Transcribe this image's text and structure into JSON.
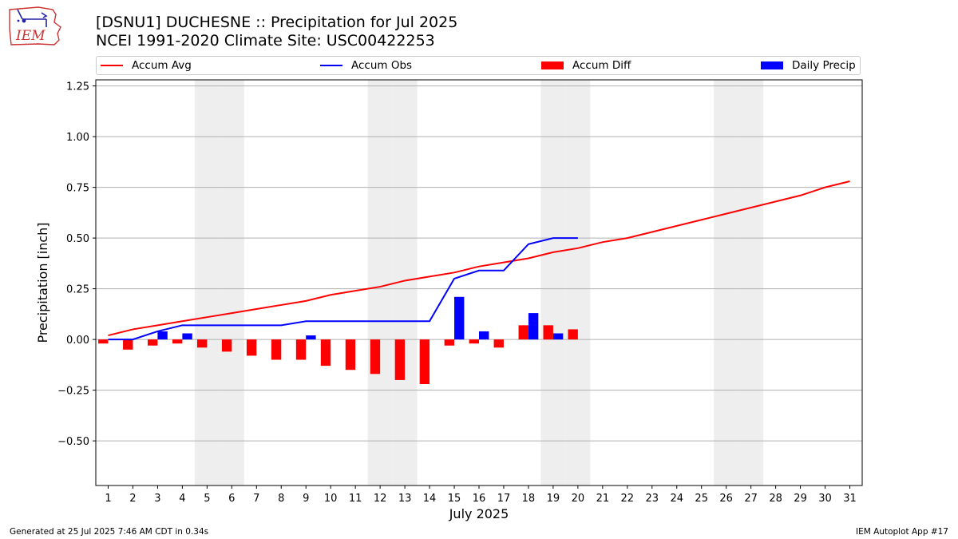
{
  "header": {
    "title_line1": "[DSNU1] DUCHESNE :: Precipitation for Jul 2025",
    "title_line2": "NCEI 1991-2020 Climate Site: USC00422253",
    "logo_text": "IEM"
  },
  "footer": {
    "generated": "Generated at 25 Jul 2025 7:46 AM CDT in 0.34s",
    "app": "IEM Autoplot App #17"
  },
  "colors": {
    "avg": "#ff0000",
    "obs": "#0000ff",
    "diff": "#ff0000",
    "precip": "#0000ff",
    "weekend": "#eeeeee",
    "grid": "#b0b0b0"
  },
  "chart_data": {
    "type": "bar",
    "title": "[DSNU1] DUCHESNE :: Precipitation for Jul 2025",
    "subtitle": "NCEI 1991-2020 Climate Site: USC00422253",
    "xlabel": "July 2025",
    "ylabel": "Precipitation [inch]",
    "ylim": [
      -0.72,
      1.28
    ],
    "xlim": [
      0.5,
      31.5
    ],
    "yticks": [
      -0.5,
      -0.25,
      0.0,
      0.25,
      0.5,
      0.75,
      1.0,
      1.25
    ],
    "ytick_labels": [
      "−0.50",
      "−0.25",
      "0.00",
      "0.25",
      "0.50",
      "0.75",
      "1.00",
      "1.25"
    ],
    "categories": [
      "1",
      "2",
      "3",
      "4",
      "5",
      "6",
      "7",
      "8",
      "9",
      "10",
      "11",
      "12",
      "13",
      "14",
      "15",
      "16",
      "17",
      "18",
      "19",
      "20",
      "21",
      "22",
      "23",
      "24",
      "25",
      "26",
      "27",
      "28",
      "29",
      "30",
      "31"
    ],
    "grid": "horizontal",
    "legend_position": "top",
    "weekend_days": [
      5,
      6,
      12,
      13,
      19,
      20,
      26,
      27
    ],
    "series": [
      {
        "name": "Accum Avg",
        "kind": "line",
        "color": "#ff0000",
        "x": [
          1,
          2,
          3,
          4,
          5,
          6,
          7,
          8,
          9,
          10,
          11,
          12,
          13,
          14,
          15,
          16,
          17,
          18,
          19,
          20,
          21,
          22,
          23,
          24,
          25,
          26,
          27,
          28,
          29,
          30,
          31
        ],
        "values": [
          0.02,
          0.05,
          0.07,
          0.09,
          0.11,
          0.13,
          0.15,
          0.17,
          0.19,
          0.22,
          0.24,
          0.26,
          0.29,
          0.31,
          0.33,
          0.36,
          0.38,
          0.4,
          0.43,
          0.45,
          0.48,
          0.5,
          0.53,
          0.56,
          0.59,
          0.62,
          0.65,
          0.68,
          0.71,
          0.75,
          0.78
        ]
      },
      {
        "name": "Accum Obs",
        "kind": "line",
        "color": "#0000ff",
        "x": [
          1,
          2,
          3,
          4,
          5,
          6,
          7,
          8,
          9,
          10,
          11,
          12,
          13,
          14,
          15,
          16,
          17,
          18,
          19,
          20
        ],
        "values": [
          0.0,
          0.0,
          0.04,
          0.07,
          0.07,
          0.07,
          0.07,
          0.07,
          0.09,
          0.09,
          0.09,
          0.09,
          0.09,
          0.09,
          0.3,
          0.34,
          0.34,
          0.47,
          0.5,
          0.5
        ]
      },
      {
        "name": "Accum Diff",
        "kind": "bar",
        "color": "#ff0000",
        "x": [
          1,
          2,
          3,
          4,
          5,
          6,
          7,
          8,
          9,
          10,
          11,
          12,
          13,
          14,
          15,
          16,
          17,
          18,
          19,
          20
        ],
        "values": [
          -0.02,
          -0.05,
          -0.03,
          -0.02,
          -0.04,
          -0.06,
          -0.08,
          -0.1,
          -0.1,
          -0.13,
          -0.15,
          -0.17,
          -0.2,
          -0.22,
          -0.03,
          -0.02,
          -0.04,
          0.07,
          0.07,
          0.05
        ]
      },
      {
        "name": "Daily Precip",
        "kind": "bar",
        "color": "#0000ff",
        "x": [
          1,
          2,
          3,
          4,
          5,
          6,
          7,
          8,
          9,
          10,
          11,
          12,
          13,
          14,
          15,
          16,
          17,
          18,
          19,
          20
        ],
        "values": [
          0,
          0,
          0.04,
          0.03,
          0,
          0,
          0,
          0,
          0.02,
          0,
          0,
          0,
          0,
          0,
          0.21,
          0.04,
          0,
          0.13,
          0.03,
          0
        ]
      }
    ]
  }
}
